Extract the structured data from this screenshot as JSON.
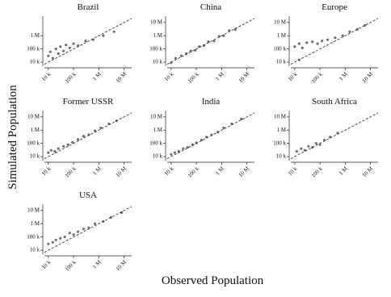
{
  "chart_data": {
    "type": "scatter",
    "xlabel": "Observed Population",
    "ylabel": "Simulated Population",
    "log": true,
    "color": "#333333",
    "xlim": [
      7000,
      20000000
    ],
    "ylim": [
      5000,
      30000000
    ],
    "xticks": [
      {
        "value": 10000,
        "label": "10 k"
      },
      {
        "value": 100000,
        "label": "100 k"
      },
      {
        "value": 1000000,
        "label": "1 M"
      },
      {
        "value": 10000000,
        "label": "10 M"
      }
    ],
    "panels": [
      {
        "title": "Brazil",
        "yticks": [
          {
            "value": 10000,
            "label": "10 k"
          },
          {
            "value": 100000,
            "label": "100 k"
          },
          {
            "value": 1000000,
            "label": "1 M"
          }
        ],
        "x": [
          10000,
          12000,
          15000,
          20000,
          25000,
          30000,
          40000,
          50000,
          70000,
          100000,
          150000,
          300000,
          600000,
          1500000,
          4000000
        ],
        "values": [
          30000,
          60000,
          20000,
          100000,
          45000,
          150000,
          70000,
          200000,
          120000,
          250000,
          180000,
          400000,
          500000,
          1000000,
          2000000
        ]
      },
      {
        "title": "China",
        "yticks": [
          {
            "value": 10000,
            "label": "10 k"
          },
          {
            "value": 100000,
            "label": "100 k"
          },
          {
            "value": 1000000,
            "label": "1 M"
          },
          {
            "value": 10000000,
            "label": "10 M"
          }
        ],
        "x": [
          10000,
          15000,
          25000,
          40000,
          60000,
          90000,
          130000,
          200000,
          300000,
          500000,
          800000,
          1200000,
          2000000,
          3500000
        ],
        "values": [
          9000,
          20000,
          30000,
          45000,
          70000,
          80000,
          150000,
          180000,
          350000,
          400000,
          900000,
          1000000,
          2500000,
          3000000
        ]
      },
      {
        "title": "Europe",
        "yticks": [
          {
            "value": 10000,
            "label": "10 k"
          },
          {
            "value": 100000,
            "label": "100 k"
          },
          {
            "value": 1000000,
            "label": "1 M"
          },
          {
            "value": 10000000,
            "label": "10 M"
          }
        ],
        "x": [
          10000,
          15000,
          20000,
          30000,
          50000,
          80000,
          120000,
          200000,
          400000,
          800000,
          1500000,
          3000000,
          6000000,
          15000
        ],
        "values": [
          150000,
          250000,
          120000,
          300000,
          350000,
          250000,
          400000,
          500000,
          700000,
          1000000,
          2000000,
          3000000,
          6000000,
          15000
        ]
      },
      {
        "title": "Former USSR",
        "yticks": [
          {
            "value": 10000,
            "label": "10 k"
          },
          {
            "value": 100000,
            "label": "100 k"
          },
          {
            "value": 1000000,
            "label": "1 M"
          },
          {
            "value": 10000000,
            "label": "10 M"
          }
        ],
        "x": [
          10000,
          13000,
          18000,
          25000,
          40000,
          60000,
          90000,
          150000,
          250000,
          400000,
          700000,
          1200000,
          2500000,
          5000000
        ],
        "values": [
          20000,
          30000,
          25000,
          40000,
          60000,
          80000,
          120000,
          200000,
          350000,
          450000,
          900000,
          1500000,
          3000000,
          5000000
        ]
      },
      {
        "title": "India",
        "yticks": [
          {
            "value": 10000,
            "label": "10 k"
          },
          {
            "value": 100000,
            "label": "100 k"
          },
          {
            "value": 1000000,
            "label": "1 M"
          },
          {
            "value": 10000000,
            "label": "10 M"
          }
        ],
        "x": [
          10000,
          14000,
          20000,
          30000,
          45000,
          70000,
          100000,
          160000,
          250000,
          400000,
          700000,
          1200000,
          2500000,
          6000000
        ],
        "values": [
          15000,
          20000,
          25000,
          40000,
          50000,
          80000,
          110000,
          180000,
          300000,
          450000,
          700000,
          1500000,
          3000000,
          7000000
        ]
      },
      {
        "title": "South Africa",
        "yticks": [
          {
            "value": 10000,
            "label": "10 k"
          },
          {
            "value": 100000,
            "label": "100 k"
          },
          {
            "value": 1000000,
            "label": "1 M"
          },
          {
            "value": 10000000,
            "label": "10 M"
          }
        ],
        "x": [
          12000,
          18000,
          25000,
          35000,
          50000,
          70000,
          100000,
          150000,
          250000,
          500000
        ],
        "values": [
          25000,
          40000,
          30000,
          60000,
          50000,
          100000,
          80000,
          180000,
          300000,
          600000
        ]
      },
      {
        "title": "USA",
        "yticks": [
          {
            "value": 10000,
            "label": "10 k"
          },
          {
            "value": 100000,
            "label": "100 k"
          },
          {
            "value": 1000000,
            "label": "1 M"
          },
          {
            "value": 10000000,
            "label": "10 M"
          }
        ],
        "x": [
          10000,
          15000,
          20000,
          30000,
          45000,
          70000,
          100000,
          150000,
          250000,
          400000,
          700000,
          1500000,
          3000000,
          8000000
        ],
        "values": [
          30000,
          40000,
          60000,
          80000,
          100000,
          200000,
          150000,
          250000,
          400000,
          500000,
          1000000,
          1500000,
          3000000,
          7000000
        ]
      }
    ]
  }
}
